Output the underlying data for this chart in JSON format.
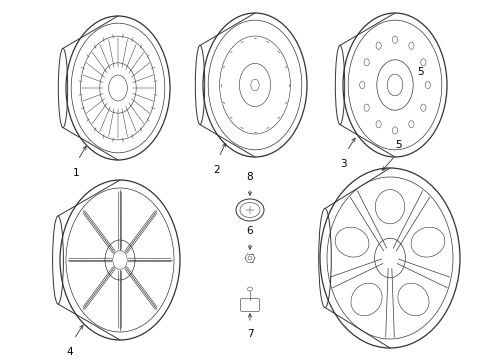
{
  "background_color": "#ffffff",
  "line_color": "#333333",
  "text_color": "#000000",
  "figsize": [
    4.9,
    3.6
  ],
  "dpi": 100
}
